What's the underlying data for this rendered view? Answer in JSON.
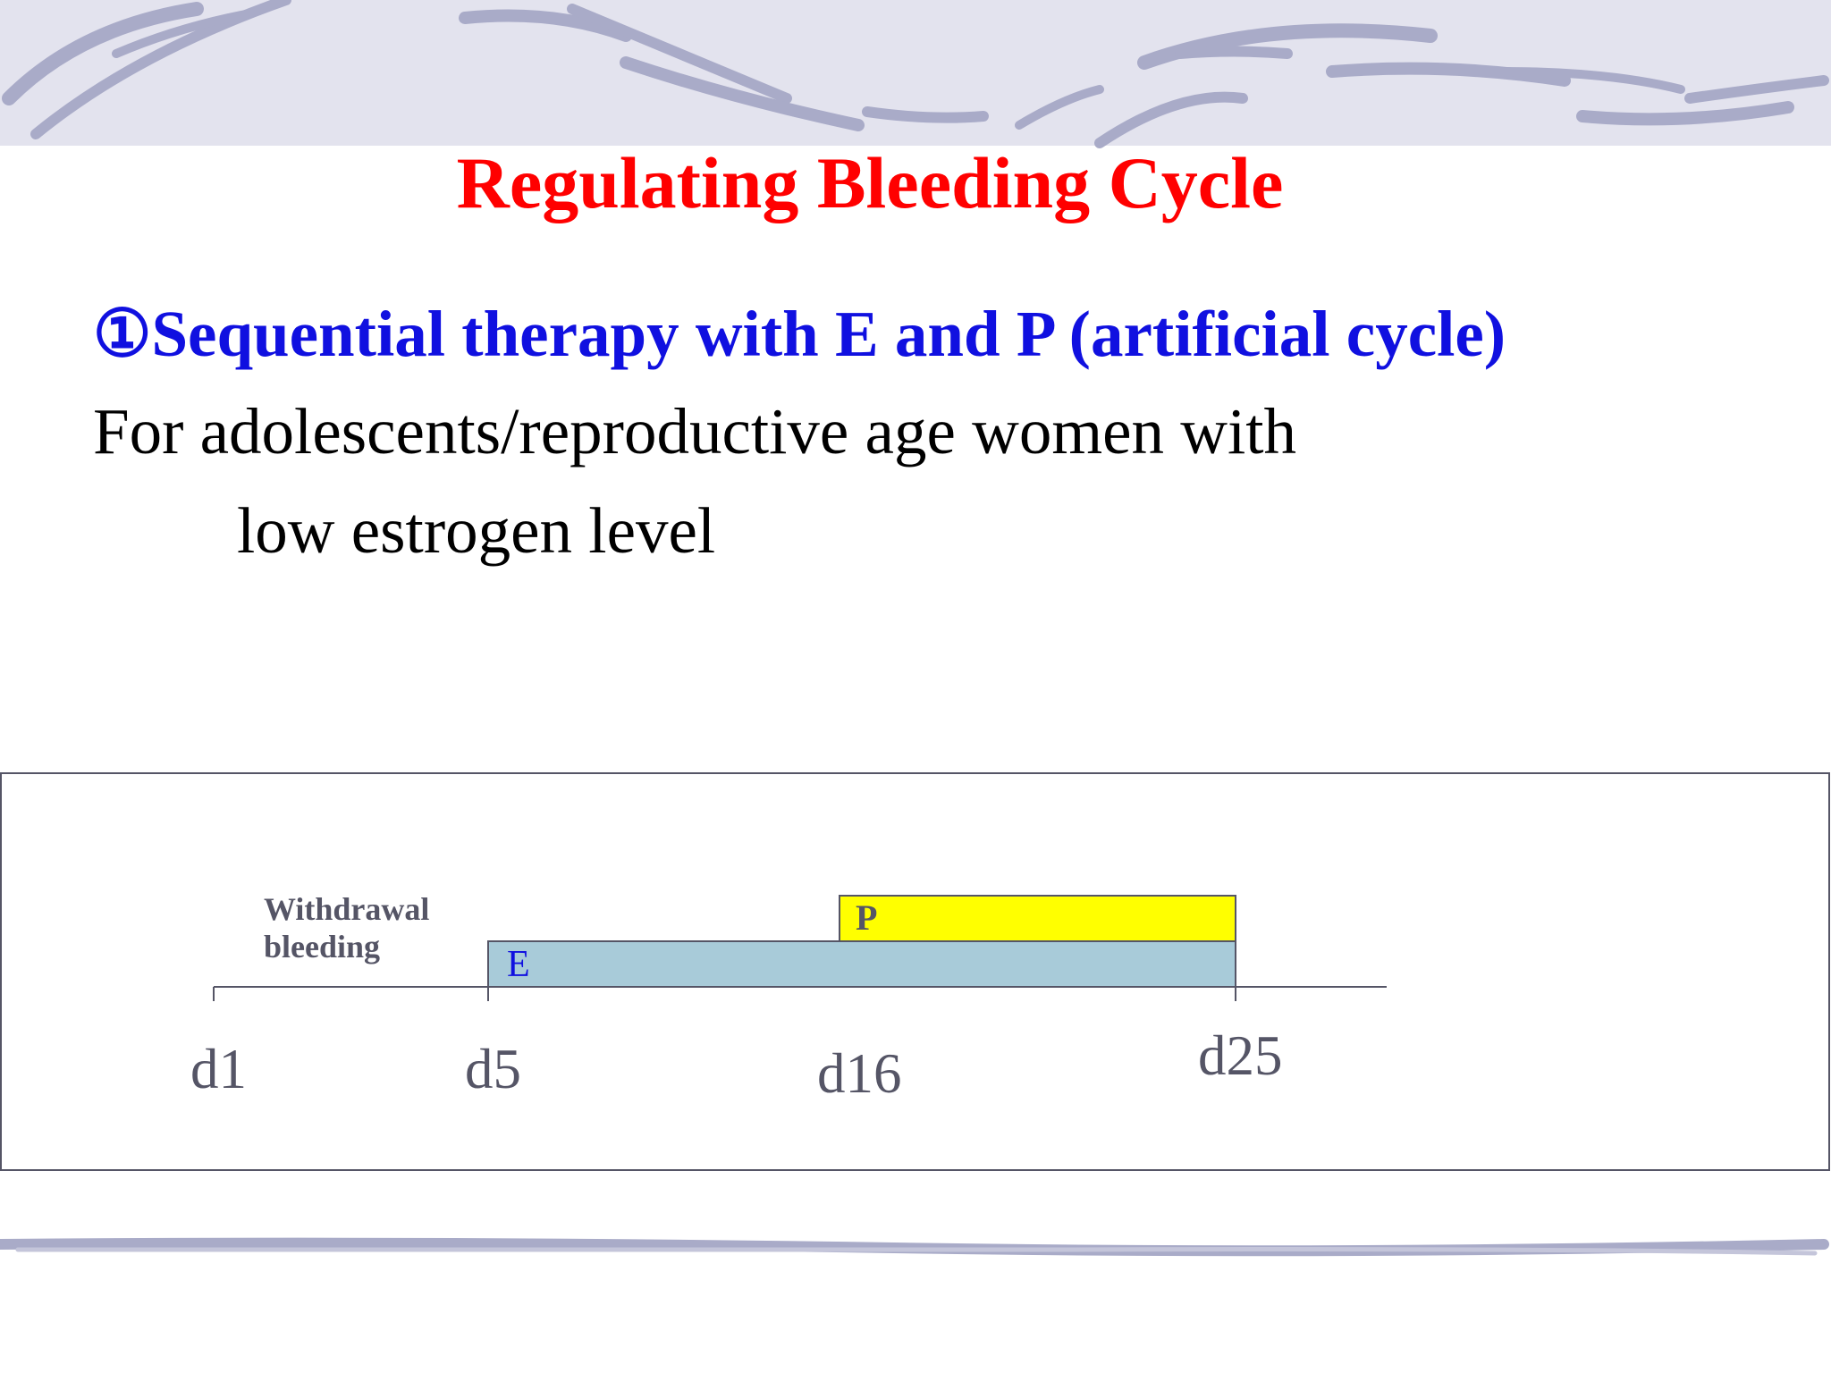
{
  "header": {
    "title": "Regulating Bleeding Cycle"
  },
  "body": {
    "heading": "①Sequential therapy with E and P (artificial cycle)",
    "lines": [
      "For adolescents/reproductive age women with",
      "low estrogen level"
    ]
  },
  "diagram": {
    "annotation": [
      "Withdrawal",
      "bleeding"
    ],
    "bars": [
      {
        "label": "E"
      },
      {
        "label": "P"
      }
    ],
    "days": [
      "d1",
      "d5",
      "d16",
      "d25"
    ]
  }
}
